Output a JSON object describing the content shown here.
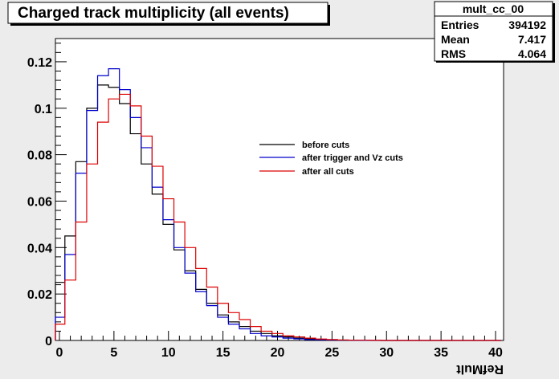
{
  "chart_data": {
    "type": "line",
    "title": "Charged track multiplicity (all events)",
    "xlabel": "RefMult",
    "ylabel": "",
    "xlim": [
      0,
      40
    ],
    "ylim": [
      0,
      0.13
    ],
    "x_ticks": [
      "0",
      "5",
      "10",
      "15",
      "20",
      "25",
      "30",
      "35",
      "40"
    ],
    "y_ticks": [
      "0",
      "0.02",
      "0.04",
      "0.06",
      "0.08",
      "0.1",
      "0.12"
    ],
    "bin_edges": [
      -0.5,
      0.5,
      1.5,
      2.5,
      3.5,
      4.5,
      5.5,
      6.5,
      7.5,
      8.5,
      9.5,
      10.5,
      11.5,
      12.5,
      13.5,
      14.5,
      15.5,
      16.5,
      17.5,
      18.5,
      19.5,
      20.5,
      21.5,
      22.5,
      23.5,
      24.5,
      25.5,
      26.5,
      27.5,
      28.5,
      29.5,
      30.5,
      31.5,
      32.5,
      33.5,
      34.5,
      35.5,
      36.5,
      37.5,
      38.5,
      39.5,
      40.5
    ],
    "series": [
      {
        "name": "before cuts",
        "color": "#000000",
        "values": [
          0.025,
          0.045,
          0.077,
          0.1,
          0.11,
          0.109,
          0.102,
          0.089,
          0.076,
          0.063,
          0.05,
          0.039,
          0.03,
          0.022,
          0.016,
          0.011,
          0.008,
          0.006,
          0.004,
          0.003,
          0.002,
          0.0015,
          0.001,
          0.0007,
          0.0005,
          0.0003,
          0.0002,
          0.0001,
          0.0001,
          5e-05,
          0,
          0,
          0,
          0,
          0,
          0,
          0,
          0,
          0,
          0,
          0
        ]
      },
      {
        "name": "after trigger and Vz cuts",
        "color": "#0000cc",
        "values": [
          0.01,
          0.037,
          0.072,
          0.099,
          0.114,
          0.117,
          0.108,
          0.096,
          0.083,
          0.066,
          0.052,
          0.04,
          0.029,
          0.021,
          0.015,
          0.01,
          0.007,
          0.005,
          0.003,
          0.002,
          0.0015,
          0.001,
          0.0007,
          0.0004,
          0.0003,
          0.0002,
          0.0001,
          0.0001,
          5e-05,
          0,
          0,
          0,
          0,
          0,
          0,
          0,
          0,
          0,
          0,
          0,
          0
        ]
      },
      {
        "name": "after all cuts",
        "color": "#dd0000",
        "values": [
          0.007,
          0.026,
          0.051,
          0.076,
          0.094,
          0.104,
          0.106,
          0.101,
          0.088,
          0.075,
          0.061,
          0.051,
          0.04,
          0.031,
          0.023,
          0.016,
          0.012,
          0.009,
          0.006,
          0.004,
          0.003,
          0.002,
          0.0015,
          0.001,
          0.0006,
          0.0004,
          0.0002,
          0.0001,
          0.0001,
          5e-05,
          0,
          0,
          0,
          0,
          0,
          0,
          0,
          0,
          0,
          0,
          0
        ]
      }
    ],
    "legend_position": "upper-middle-right",
    "grid": false,
    "stats": {
      "name": "mult_cc_00",
      "entries_label": "Entries",
      "entries": "394192",
      "mean_label": "Mean",
      "mean": "7.417",
      "rms_label": "RMS",
      "rms": "4.064"
    }
  }
}
